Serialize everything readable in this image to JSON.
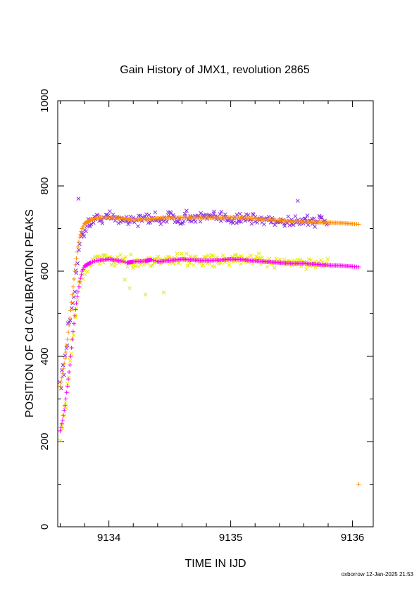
{
  "chart_data": {
    "type": "scatter",
    "title": "Gain History of JMX1, revolution 2865",
    "xlabel": "TIME IN IJD",
    "ylabel": "POSITION OF Cd CALIBRATION PEAKS",
    "xlim": [
      9133.58,
      9136.17
    ],
    "ylim": [
      0,
      1000
    ],
    "x_ticks": [
      "9134",
      "9135",
      "9136"
    ],
    "x_tick_values": [
      9134,
      9135,
      9136
    ],
    "y_ticks": [
      "0",
      "200",
      "400",
      "600",
      "800",
      "1000"
    ],
    "y_tick_values": [
      0,
      200,
      400,
      600,
      800,
      1000
    ],
    "minor_tick_step_x": 0.2,
    "minor_tick_step_y": 100,
    "grid": false,
    "series": [
      {
        "marker": "x",
        "color": "#8a2be2",
        "role": "upper peak measurements",
        "center": [
          [
            9133.6,
            330
          ],
          [
            9133.65,
            400
          ],
          [
            9133.7,
            520
          ],
          [
            9133.75,
            650
          ],
          [
            9133.8,
            700
          ],
          [
            9133.85,
            715
          ],
          [
            9133.9,
            725
          ],
          [
            9134.0,
            726
          ],
          [
            9134.2,
            720
          ],
          [
            9134.4,
            724
          ],
          [
            9134.6,
            726
          ],
          [
            9134.8,
            725
          ],
          [
            9135.0,
            726
          ],
          [
            9135.2,
            722
          ],
          [
            9135.4,
            718
          ],
          [
            9135.6,
            720
          ],
          [
            9135.8,
            716
          ]
        ],
        "scatter": 14,
        "outliers": [
          [
            9133.75,
            770
          ],
          [
            9135.55,
            765
          ]
        ]
      },
      {
        "marker": "x",
        "color": "#e8e800",
        "role": "lower peak measurements",
        "center": [
          [
            9133.6,
            200
          ],
          [
            9133.65,
            300
          ],
          [
            9133.7,
            430
          ],
          [
            9133.75,
            560
          ],
          [
            9133.8,
            600
          ],
          [
            9133.85,
            620
          ],
          [
            9133.9,
            628
          ],
          [
            9134.0,
            628
          ],
          [
            9134.2,
            622
          ],
          [
            9134.4,
            625
          ],
          [
            9134.6,
            628
          ],
          [
            9134.8,
            626
          ],
          [
            9135.0,
            628
          ],
          [
            9135.2,
            625
          ],
          [
            9135.4,
            622
          ],
          [
            9135.6,
            620
          ],
          [
            9135.8,
            618
          ]
        ],
        "scatter": 13,
        "outliers": [
          [
            9134.13,
            580
          ],
          [
            9134.17,
            560
          ],
          [
            9134.3,
            545
          ],
          [
            9134.45,
            550
          ]
        ]
      },
      {
        "marker": "+",
        "color": "#ff8c00",
        "role": "upper peak fit",
        "points": [
          [
            9133.6,
            330
          ],
          [
            9133.62,
            360
          ],
          [
            9133.64,
            395
          ],
          [
            9133.66,
            440
          ],
          [
            9133.68,
            490
          ],
          [
            9133.7,
            545
          ],
          [
            9133.72,
            600
          ],
          [
            9133.74,
            645
          ],
          [
            9133.76,
            680
          ],
          [
            9133.78,
            700
          ],
          [
            9133.8,
            712
          ],
          [
            9133.85,
            720
          ],
          [
            9133.9,
            724
          ],
          [
            9134.0,
            726
          ],
          [
            9134.1,
            724
          ],
          [
            9134.2,
            720
          ],
          [
            9134.3,
            722
          ],
          [
            9134.4,
            724
          ],
          [
            9134.5,
            725
          ],
          [
            9134.6,
            726
          ],
          [
            9134.7,
            726
          ],
          [
            9134.8,
            725
          ],
          [
            9134.9,
            725
          ],
          [
            9135.0,
            726
          ],
          [
            9135.1,
            725
          ],
          [
            9135.2,
            723
          ],
          [
            9135.3,
            721
          ],
          [
            9135.4,
            719
          ],
          [
            9135.5,
            717
          ],
          [
            9135.6,
            716
          ],
          [
            9135.7,
            715
          ],
          [
            9135.8,
            714
          ],
          [
            9135.9,
            713
          ],
          [
            9136.0,
            711
          ],
          [
            9136.05,
            710
          ]
        ],
        "outliers": [
          [
            9136.05,
            100
          ]
        ]
      },
      {
        "marker": "+",
        "color": "#ff00ff",
        "role": "lower peak fit",
        "points": [
          [
            9133.6,
            225
          ],
          [
            9133.62,
            250
          ],
          [
            9133.64,
            285
          ],
          [
            9133.66,
            330
          ],
          [
            9133.68,
            380
          ],
          [
            9133.7,
            440
          ],
          [
            9133.72,
            495
          ],
          [
            9133.74,
            540
          ],
          [
            9133.76,
            575
          ],
          [
            9133.78,
            600
          ],
          [
            9133.8,
            612
          ],
          [
            9133.85,
            620
          ],
          [
            9133.9,
            625
          ],
          [
            9134.0,
            628
          ],
          [
            9134.1,
            624
          ],
          [
            9134.15,
            620
          ],
          [
            9134.2,
            622
          ],
          [
            9134.3,
            624
          ],
          [
            9134.35,
            627
          ],
          [
            9134.4,
            622
          ],
          [
            9134.5,
            625
          ],
          [
            9134.6,
            628
          ],
          [
            9134.7,
            626
          ],
          [
            9134.8,
            625
          ],
          [
            9134.9,
            626
          ],
          [
            9135.0,
            628
          ],
          [
            9135.1,
            627
          ],
          [
            9135.2,
            624
          ],
          [
            9135.3,
            622
          ],
          [
            9135.4,
            620
          ],
          [
            9135.5,
            618
          ],
          [
            9135.6,
            618
          ],
          [
            9135.7,
            616
          ],
          [
            9135.8,
            614
          ],
          [
            9135.9,
            613
          ],
          [
            9136.0,
            611
          ],
          [
            9136.05,
            610
          ]
        ]
      }
    ]
  },
  "footer": {
    "credit": "oxborrow 12-Jan-2025 21:53"
  }
}
